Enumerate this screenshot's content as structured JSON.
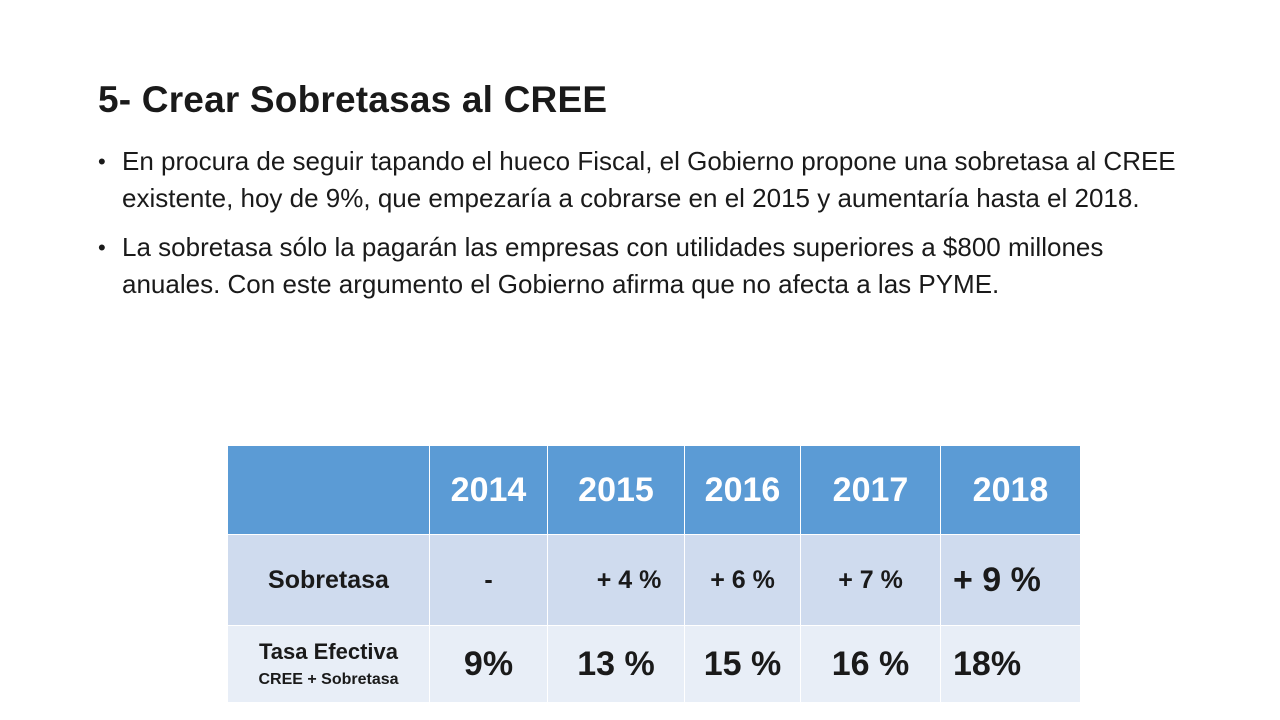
{
  "slide": {
    "title": "5- Crear Sobretasas al CREE",
    "bullets": [
      "En procura de seguir tapando el hueco Fiscal, el Gobierno propone una sobretasa al CREE existente, hoy de 9%, que empezaría a cobrarse en el 2015 y aumentaría hasta el 2018.",
      "La sobretasa sólo la pagarán las empresas con utilidades superiores a $800 millones anuales. Con este argumento el Gobierno afirma que no afecta a las PYME."
    ],
    "bullet_glyph": "•"
  },
  "table": {
    "corner": "",
    "years": [
      "2014",
      "2015",
      "2016",
      "2017",
      "2018"
    ],
    "rows": [
      {
        "label": "Sobretasa",
        "sublabel": "",
        "values": [
          "-",
          "+ 4 %",
          "+ 6 %",
          "+ 7 %",
          "+ 9 %"
        ]
      },
      {
        "label": "Tasa Efectiva",
        "sublabel": "CREE + Sobretasa",
        "values": [
          "9%",
          "13 %",
          "15 %",
          "16 %",
          "18%"
        ]
      }
    ]
  },
  "colors": {
    "header_bg": "#5b9bd5",
    "row1_bg": "#cfdbee",
    "row2_bg": "#e8eef7"
  }
}
